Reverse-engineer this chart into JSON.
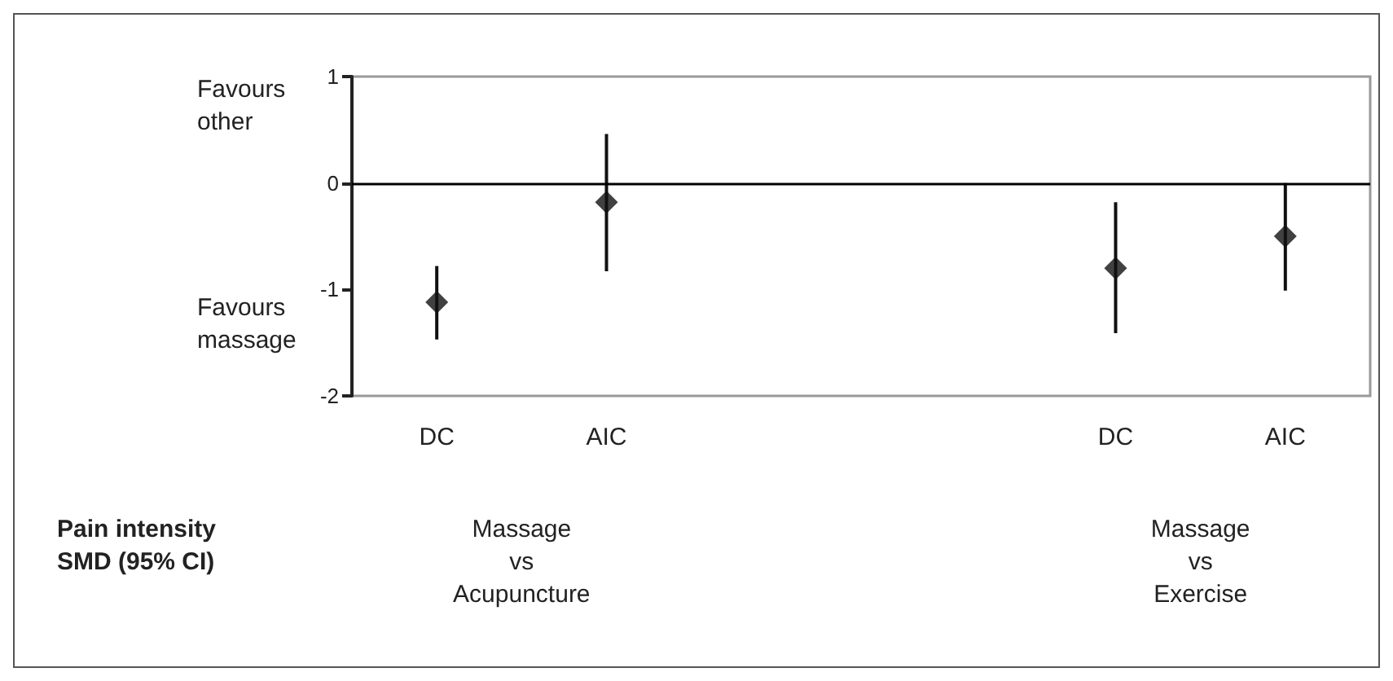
{
  "chart_data": {
    "type": "scatter",
    "categories": [
      "DC",
      "AIC",
      null,
      null,
      "DC",
      "AIC"
    ],
    "values": [
      -1.12,
      -0.18,
      null,
      null,
      -0.8,
      -0.5
    ],
    "errors": [
      [
        -1.47,
        -0.78
      ],
      [
        -0.83,
        0.46
      ],
      null,
      null,
      [
        -1.41,
        -0.18
      ],
      [
        -1.01,
        0
      ]
    ],
    "color": "#111111",
    "marker": "diamond",
    "ylim": [
      -2,
      1
    ],
    "yticks": [
      -2,
      -1,
      0,
      1
    ],
    "ref_lines": [
      {
        "axis": "y",
        "value": 0,
        "color": "#000000"
      }
    ],
    "annotations": [
      "Favours\nother",
      "Favours\nmassage",
      "Pain intensity\nSMD (95% CI)",
      "Massage\nvs\nAcupuncture",
      "Massage\nvs\nExercise"
    ]
  }
}
